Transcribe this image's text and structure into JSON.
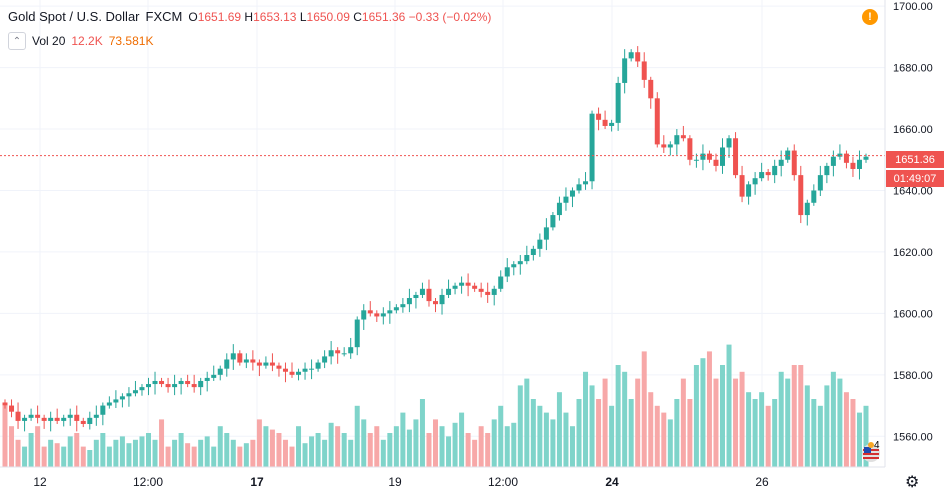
{
  "legend": {
    "title": "Gold Spot / U.S. Dollar",
    "exchange": "FXCM",
    "open_label": "O",
    "open": "1651.69",
    "high_label": "H",
    "high": "1653.13",
    "low_label": "L",
    "low": "1650.09",
    "close_label": "C",
    "close": "1651.36",
    "change": "−0.33 (−0.02%)"
  },
  "volume": {
    "label": "Vol 20",
    "value1": "12.2K",
    "value2": "73.581K"
  },
  "price_tags": {
    "last_price": "1651.36",
    "countdown": "01:49:07"
  },
  "flag_badge": "4",
  "colors": {
    "up": "#26a69a",
    "down": "#ef5350",
    "vol_up": "#7fd4ca",
    "vol_down": "#f7a8a8"
  },
  "chart_data": {
    "type": "candlestick",
    "y_ticks": [
      "1700.00",
      "1680.00",
      "1660.00",
      "1640.00",
      "1620.00",
      "1600.00",
      "1580.00",
      "1560.00"
    ],
    "x_ticks": [
      "12",
      "12:00",
      "17",
      "19",
      "12:00",
      "24",
      "26"
    ],
    "ylim": [
      1550,
      1702
    ],
    "last_price": 1651.36,
    "closes": [
      1570,
      1568,
      1565,
      1566,
      1567,
      1566,
      1565,
      1566,
      1565,
      1566,
      1567,
      1565,
      1564,
      1566,
      1567,
      1570,
      1571,
      1572,
      1573,
      1574,
      1575,
      1576,
      1577,
      1578,
      1577,
      1576,
      1577,
      1578,
      1577,
      1576,
      1578,
      1579,
      1580,
      1582,
      1585,
      1587,
      1584,
      1585,
      1584,
      1583,
      1584,
      1583,
      1582,
      1581,
      1580,
      1581,
      1582,
      1582,
      1584,
      1586,
      1588,
      1587,
      1587,
      1589,
      1598,
      1601,
      1600,
      1599,
      1600,
      1601,
      1602,
      1603,
      1605,
      1606,
      1608,
      1604,
      1603,
      1606,
      1608,
      1609,
      1610,
      1609,
      1608,
      1607,
      1606,
      1608,
      1612,
      1615,
      1616,
      1617,
      1619,
      1621,
      1624,
      1628,
      1632,
      1636,
      1638,
      1640,
      1642,
      1643,
      1665,
      1663,
      1661,
      1662,
      1675,
      1683,
      1685,
      1682,
      1676,
      1670,
      1655,
      1654,
      1655,
      1658,
      1657,
      1650,
      1650,
      1652,
      1650,
      1648,
      1654,
      1657,
      1645,
      1638,
      1642,
      1644,
      1646,
      1645,
      1648,
      1650,
      1653,
      1645,
      1632,
      1636,
      1640,
      1645,
      1648,
      1651,
      1652,
      1649,
      1647,
      1650,
      1651
    ],
    "volumes": [
      18,
      12,
      8,
      6,
      10,
      12,
      6,
      8,
      7,
      6,
      9,
      10,
      6,
      5,
      8,
      10,
      6,
      8,
      9,
      7,
      8,
      9,
      10,
      8,
      14,
      6,
      8,
      10,
      7,
      6,
      8,
      9,
      6,
      12,
      10,
      8,
      6,
      7,
      8,
      14,
      12,
      11,
      10,
      8,
      6,
      12,
      7,
      9,
      10,
      8,
      13,
      12,
      10,
      8,
      18,
      14,
      10,
      12,
      8,
      10,
      12,
      16,
      11,
      14,
      20,
      10,
      14,
      12,
      9,
      13,
      16,
      10,
      8,
      12,
      10,
      14,
      18,
      12,
      13,
      24,
      26,
      20,
      18,
      16,
      14,
      22,
      16,
      12,
      20,
      28,
      24,
      20,
      26,
      18,
      30,
      28,
      20,
      26,
      34,
      22,
      18,
      16,
      14,
      20,
      26,
      20,
      30,
      32,
      34,
      26,
      30,
      36,
      26,
      28,
      22,
      20,
      22,
      18,
      20,
      28,
      26,
      30,
      30,
      24,
      20,
      18,
      24,
      28,
      26,
      22,
      20,
      16,
      18
    ]
  }
}
